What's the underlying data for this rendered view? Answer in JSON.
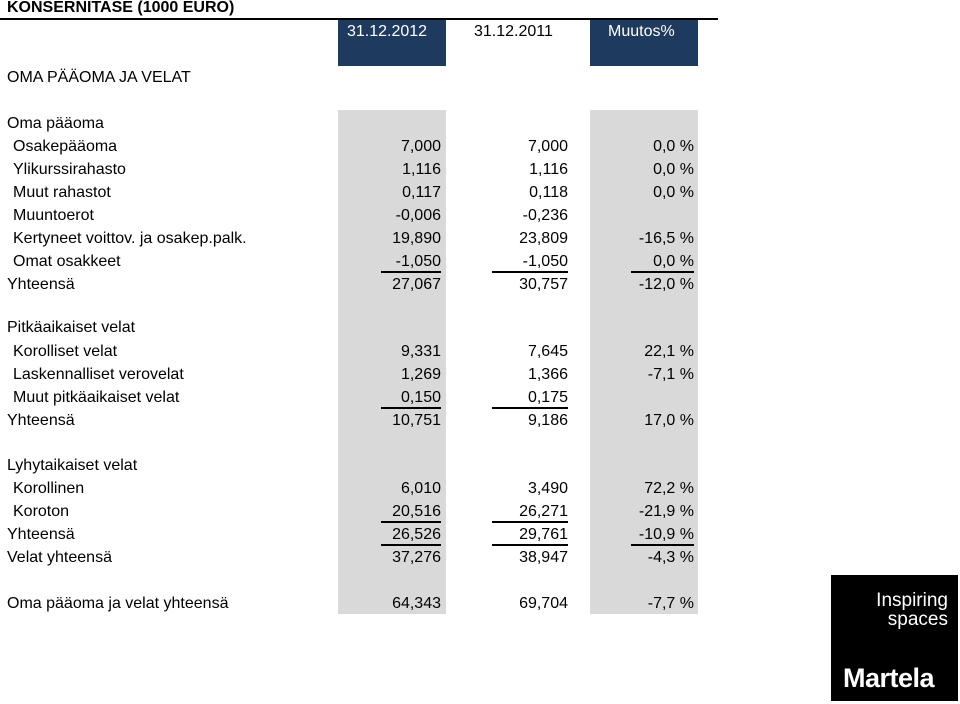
{
  "title": "KONSERNITASE (1000 EURO)",
  "headers": {
    "col1": "31.12.2012",
    "col2": "31.12.2011",
    "col3": "Muutos%"
  },
  "section_main": "OMA PÄÄOMA JA VELAT",
  "equity": {
    "heading": "Oma pääoma",
    "rows": [
      {
        "label": "Osakepääoma",
        "v1": "7,000",
        "v2": "7,000",
        "v3": "0,0 %"
      },
      {
        "label": "Ylikurssirahasto",
        "v1": "1,116",
        "v2": "1,116",
        "v3": "0,0 %"
      },
      {
        "label": "Muut rahastot",
        "v1": "0,117",
        "v2": "0,118",
        "v3": "0,0 %"
      },
      {
        "label": "Muuntoerot",
        "v1": "-0,006",
        "v2": "-0,236",
        "v3": ""
      },
      {
        "label": "Kertyneet voittov. ja osakep.palk.",
        "v1": "19,890",
        "v2": "23,809",
        "v3": "-16,5 %"
      },
      {
        "label": "Omat osakkeet",
        "v1": "-1,050",
        "v2": "-1,050",
        "v3": "0,0 %"
      }
    ],
    "total": {
      "label": "Yhteensä",
      "v1": "27,067",
      "v2": "30,757",
      "v3": "-12,0 %"
    }
  },
  "longterm": {
    "heading": "Pitkäaikaiset velat",
    "rows": [
      {
        "label": "Korolliset velat",
        "v1": "9,331",
        "v2": "7,645",
        "v3": "22,1 %"
      },
      {
        "label": "Laskennalliset verovelat",
        "v1": "1,269",
        "v2": "1,366",
        "v3": "-7,1 %"
      },
      {
        "label": "Muut pitkäaikaiset velat",
        "v1": "0,150",
        "v2": "0,175",
        "v3": ""
      }
    ],
    "total": {
      "label": "Yhteensä",
      "v1": "10,751",
      "v2": "9,186",
      "v3": "17,0 %"
    }
  },
  "shortterm": {
    "heading": "Lyhytaikaiset velat",
    "rows": [
      {
        "label": "Korollinen",
        "v1": "6,010",
        "v2": "3,490",
        "v3": "72,2 %"
      },
      {
        "label": "Koroton",
        "v1": "20,516",
        "v2": "26,271",
        "v3": "-21,9 %"
      }
    ],
    "total": {
      "label": "Yhteensä",
      "v1": "26,526",
      "v2": "29,761",
      "v3": "-10,9 %"
    }
  },
  "liabilities_total": {
    "label": "Velat yhteensä",
    "v1": "37,276",
    "v2": "38,947",
    "v3": "-4,3 %"
  },
  "grand_total": {
    "label": "Oma pääoma ja velat yhteensä",
    "v1": "64,343",
    "v2": "69,704",
    "v3": "-7,7 %"
  },
  "logo": {
    "tagline_line1": "Inspiring",
    "tagline_line2": "spaces",
    "brand": "Martela"
  },
  "colors": {
    "header_bg": "#1f3a5f",
    "shade": "#d9d9d9",
    "logo_bg": "#000000"
  }
}
